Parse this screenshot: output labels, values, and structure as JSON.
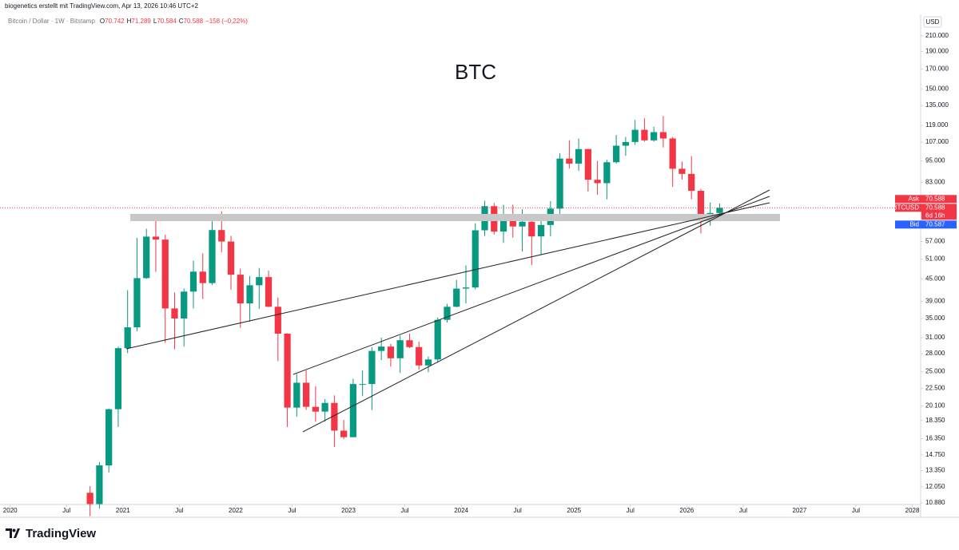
{
  "chart_data": {
    "type": "candlestick",
    "header": "biogenetics erstellt mit TradingView.com, Apr 13, 2026 10:46 UTC+2",
    "symbol": "Bitcoin / Dollar · 1W · Bitstamp",
    "ohlc_legend": [
      {
        "key": "O",
        "value": "70.742"
      },
      {
        "key": "H",
        "value": "71.289"
      },
      {
        "key": "L",
        "value": "70.584"
      },
      {
        "key": "C",
        "value": "70.588"
      }
    ],
    "change": "−158 (−0,22%)",
    "title": "BTC",
    "currency": "USD",
    "brand": "TradingView",
    "log_scale": true,
    "up_color": "#089981",
    "down_color": "#f23645",
    "x": [
      "2020-09",
      "2020-10",
      "2020-11",
      "2020-12",
      "2021-01",
      "2021-02",
      "2021-03",
      "2021-04",
      "2021-05",
      "2021-06",
      "2021-07",
      "2021-08",
      "2021-09",
      "2021-10",
      "2021-11",
      "2021-12",
      "2022-01",
      "2022-02",
      "2022-03",
      "2022-04",
      "2022-05",
      "2022-06",
      "2022-07",
      "2022-08",
      "2022-09",
      "2022-10",
      "2022-11",
      "2022-12",
      "2023-01",
      "2023-02",
      "2023-03",
      "2023-04",
      "2023-05",
      "2023-06",
      "2023-07",
      "2023-08",
      "2023-09",
      "2023-10",
      "2023-11",
      "2023-12",
      "2024-01",
      "2024-02",
      "2024-03",
      "2024-04",
      "2024-05",
      "2024-06",
      "2024-07",
      "2024-08",
      "2024-09",
      "2024-10",
      "2024-11",
      "2024-12",
      "2025-01",
      "2025-02",
      "2025-03",
      "2025-04",
      "2025-05",
      "2025-06",
      "2025-07",
      "2025-08",
      "2025-09",
      "2025-10",
      "2025-11",
      "2025-12",
      "2026-01",
      "2026-02",
      "2026-03",
      "2026-04"
    ],
    "open": [
      11600,
      10800,
      13800,
      19700,
      29000,
      33100,
      45200,
      58800,
      57700,
      37300,
      35000,
      41500,
      47100,
      43800,
      61300,
      57000,
      46200,
      38500,
      43200,
      45500,
      37700,
      31800,
      19900,
      23300,
      20000,
      19400,
      20500,
      17200,
      16500,
      23100,
      23100,
      28500,
      29300,
      27200,
      30500,
      29200,
      26000,
      27000,
      34700,
      37700,
      42300,
      42600,
      61200,
      71300,
      60700,
      67500,
      62700,
      64600,
      58900,
      63300,
      70200,
      96400,
      93400,
      102400,
      84300,
      82500,
      94200,
      104600,
      107100,
      115700,
      108200,
      114000,
      109500,
      90400,
      87500,
      78600,
      67000,
      68300
    ],
    "high": [
      12100,
      14100,
      19800,
      29300,
      41900,
      58300,
      61800,
      64900,
      59500,
      41300,
      42300,
      50500,
      52900,
      67000,
      69000,
      59100,
      48000,
      45800,
      48200,
      47400,
      40000,
      31900,
      24600,
      25200,
      22800,
      21000,
      21500,
      18400,
      23900,
      25200,
      29200,
      31000,
      29800,
      31400,
      31800,
      30200,
      27500,
      35200,
      38400,
      44700,
      49000,
      64000,
      73800,
      72800,
      71900,
      72000,
      70000,
      65600,
      66500,
      73600,
      99800,
      108300,
      109400,
      102500,
      95000,
      95700,
      112000,
      110600,
      123100,
      124400,
      117900,
      126200,
      110600,
      94600,
      97900,
      79500,
      73000,
      72500
    ],
    "low": [
      10000,
      10500,
      13200,
      17600,
      28100,
      32300,
      45000,
      47000,
      30000,
      28800,
      29300,
      37300,
      39600,
      43300,
      53300,
      42000,
      33000,
      34300,
      37200,
      37600,
      26700,
      17600,
      18800,
      19600,
      18200,
      18200,
      15500,
      16300,
      16500,
      21400,
      19600,
      26900,
      25800,
      24800,
      29000,
      25300,
      24900,
      26600,
      34100,
      37600,
      38500,
      42100,
      59000,
      59600,
      56500,
      58400,
      53500,
      49100,
      52500,
      58900,
      66800,
      90500,
      89200,
      78200,
      76600,
      74500,
      93400,
      98200,
      105100,
      107300,
      107300,
      103500,
      80600,
      84400,
      74500,
      60000,
      63000,
      66000
    ],
    "close": [
      10800,
      13800,
      19700,
      29000,
      33100,
      45200,
      58800,
      57700,
      37300,
      35000,
      41500,
      47100,
      43800,
      61300,
      57000,
      46200,
      38500,
      43200,
      45500,
      37700,
      31800,
      19900,
      23300,
      20000,
      19400,
      20500,
      17200,
      16500,
      23100,
      23100,
      28500,
      29300,
      27200,
      30500,
      29200,
      26000,
      27000,
      34700,
      37700,
      42300,
      42600,
      61200,
      71300,
      60700,
      67500,
      62700,
      64600,
      58900,
      63300,
      70200,
      96400,
      93400,
      102400,
      84300,
      82500,
      94200,
      104600,
      107100,
      115700,
      108200,
      114000,
      109500,
      90400,
      87500,
      78600,
      67000,
      68300,
      70588
    ],
    "xlim": [
      2019.91,
      2028.06
    ],
    "xticks": [
      {
        "value": 2020,
        "label": "2020"
      },
      {
        "value": 2020.5,
        "label": "Jul"
      },
      {
        "value": 2021,
        "label": "2021"
      },
      {
        "value": 2021.5,
        "label": "Jul"
      },
      {
        "value": 2022,
        "label": "2022"
      },
      {
        "value": 2022.5,
        "label": "Jul"
      },
      {
        "value": 2023,
        "label": "2023"
      },
      {
        "value": 2023.5,
        "label": "Jul"
      },
      {
        "value": 2024,
        "label": "2024"
      },
      {
        "value": 2024.5,
        "label": "Jul"
      },
      {
        "value": 2025,
        "label": "2025"
      },
      {
        "value": 2025.5,
        "label": "Jul"
      },
      {
        "value": 2026,
        "label": "2026"
      },
      {
        "value": 2026.5,
        "label": "Jul"
      },
      {
        "value": 2027,
        "label": "2027"
      },
      {
        "value": 2027.5,
        "label": "Jul"
      },
      {
        "value": 2028,
        "label": "2028"
      }
    ],
    "ylim": [
      10770,
      238000
    ],
    "yticks": [
      {
        "value": 210000,
        "label": "210.000"
      },
      {
        "value": 190000,
        "label": "190.000"
      },
      {
        "value": 170000,
        "label": "170.000"
      },
      {
        "value": 150000,
        "label": "150.000"
      },
      {
        "value": 135000,
        "label": "135.000"
      },
      {
        "value": 119000,
        "label": "119.000"
      },
      {
        "value": 107000,
        "label": "107.000"
      },
      {
        "value": 95000,
        "label": "95.000"
      },
      {
        "value": 83000,
        "label": "83.000"
      },
      {
        "value": 57000,
        "label": "57.000"
      },
      {
        "value": 51000,
        "label": "51.000"
      },
      {
        "value": 45000,
        "label": "45.000"
      },
      {
        "value": 39000,
        "label": "39.000"
      },
      {
        "value": 35000,
        "label": "35.000"
      },
      {
        "value": 31000,
        "label": "31.000"
      },
      {
        "value": 28000,
        "label": "28.000"
      },
      {
        "value": 25000,
        "label": "25.000"
      },
      {
        "value": 22500,
        "label": "22.500"
      },
      {
        "value": 20100,
        "label": "20.100"
      },
      {
        "value": 18350,
        "label": "18.350"
      },
      {
        "value": 16350,
        "label": "16.350"
      },
      {
        "value": 14750,
        "label": "14.750"
      },
      {
        "value": 13350,
        "label": "13.350"
      },
      {
        "value": 12050,
        "label": "12.050"
      },
      {
        "value": 10880,
        "label": "10.880"
      }
    ],
    "price_tags": {
      "ask": {
        "label": "Ask",
        "value": 70588,
        "value_label": "70.588",
        "color": "#f23645"
      },
      "last": {
        "label": "BTCUSD",
        "value": 70588,
        "value_label": "70.588",
        "countdown": "6d 16h",
        "color": "#f23645"
      },
      "bid": {
        "label": "Bid",
        "value": 70587,
        "value_label": "70.587",
        "color": "#2962ff"
      }
    }
  }
}
